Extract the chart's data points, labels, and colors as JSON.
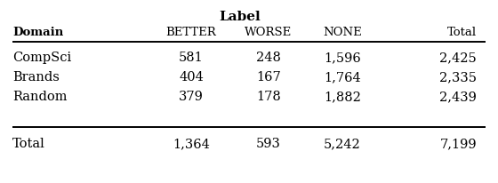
{
  "title": "Label",
  "col_header_domain": "Domain",
  "col_headers": [
    "BETTER",
    "WORSE",
    "NONE",
    "Total"
  ],
  "rows": [
    [
      "CompSci",
      "581",
      "248",
      "1,596",
      "2,425"
    ],
    [
      "Brands",
      "404",
      "167",
      "1,764",
      "2,335"
    ],
    [
      "Random",
      "379",
      "178",
      "1,882",
      "2,439"
    ]
  ],
  "total_row": [
    "Total",
    "1,364",
    "593",
    "5,242",
    "7,199"
  ],
  "background_color": "#ffffff",
  "text_color": "#000000",
  "title_fontsize": 11,
  "header_fontsize": 9.5,
  "data_fontsize": 10.5
}
